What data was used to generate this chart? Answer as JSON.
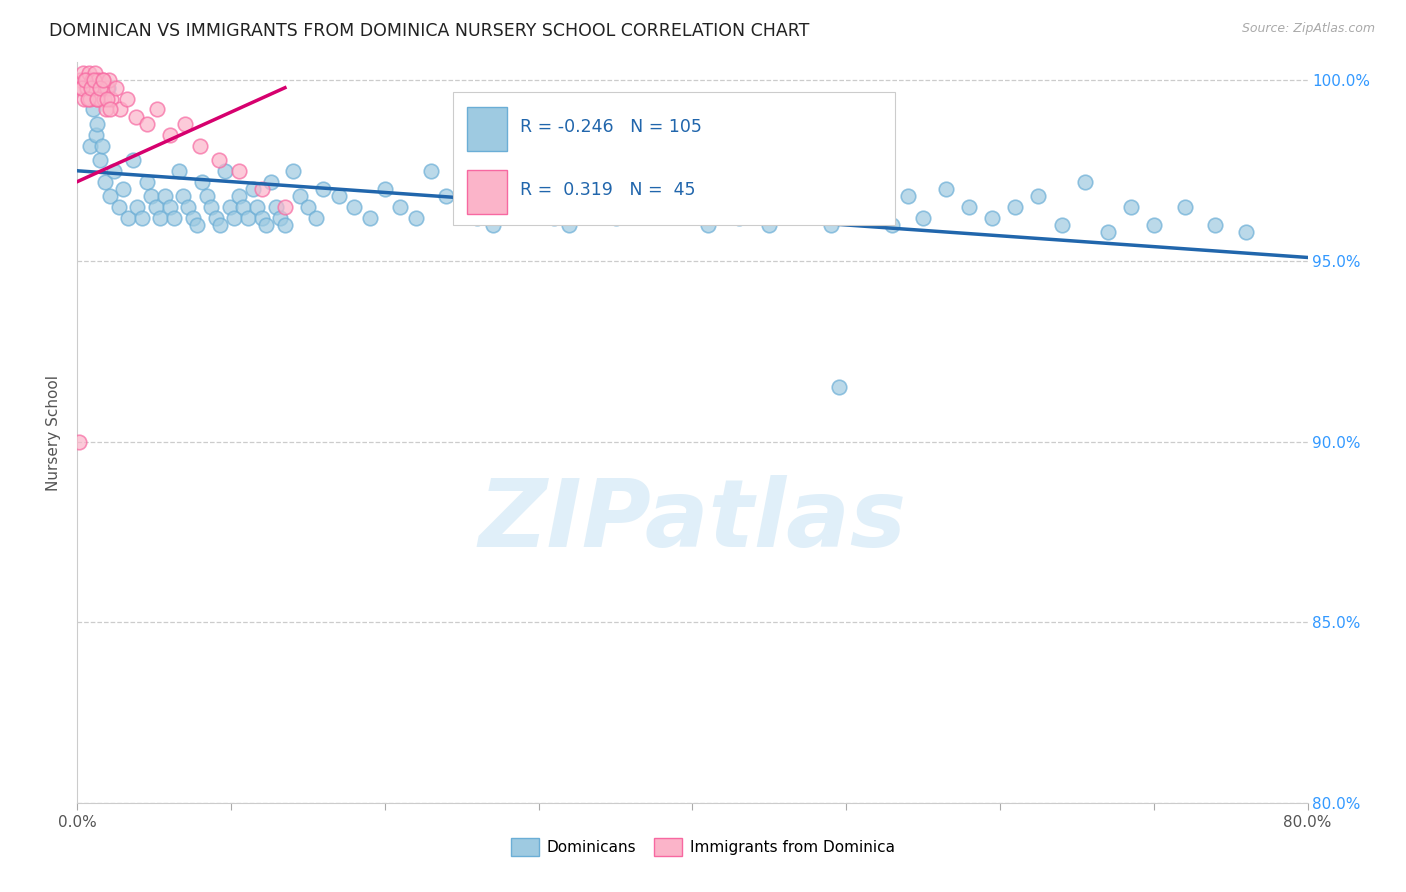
{
  "title": "DOMINICAN VS IMMIGRANTS FROM DOMINICA NURSERY SCHOOL CORRELATION CHART",
  "source": "Source: ZipAtlas.com",
  "ylabel": "Nursery School",
  "xmin": 0.0,
  "xmax": 80.0,
  "ymin": 80.0,
  "ymax": 100.5,
  "yticks": [
    80.0,
    85.0,
    90.0,
    95.0,
    100.0
  ],
  "xtick_left_label": "0.0%",
  "xtick_right_label": "80.0%",
  "blue_color": "#9ecae1",
  "blue_edge_color": "#6baed6",
  "pink_color": "#fbb4c9",
  "pink_edge_color": "#f768a1",
  "blue_line_color": "#2166ac",
  "pink_line_color": "#d6006e",
  "R_blue": -0.246,
  "N_blue": 105,
  "R_pink": 0.319,
  "N_pink": 45,
  "legend_label_blue": "Dominicans",
  "legend_label_pink": "Immigrants from Dominica",
  "watermark": "ZIPatlas",
  "blue_line_x0": 0.0,
  "blue_line_x1": 80.0,
  "blue_line_y0": 97.5,
  "blue_line_y1": 95.1,
  "pink_line_x0": 0.0,
  "pink_line_x1": 13.5,
  "pink_line_y0": 97.2,
  "pink_line_y1": 99.8,
  "blue_points_x": [
    0.8,
    1.2,
    1.5,
    1.8,
    2.1,
    2.4,
    2.7,
    3.0,
    3.3,
    3.6,
    3.9,
    4.2,
    4.5,
    4.8,
    5.1,
    5.4,
    5.7,
    6.0,
    6.3,
    6.6,
    6.9,
    7.2,
    7.5,
    7.8,
    8.1,
    8.4,
    8.7,
    9.0,
    9.3,
    9.6,
    9.9,
    10.2,
    10.5,
    10.8,
    11.1,
    11.4,
    11.7,
    12.0,
    12.3,
    12.6,
    12.9,
    13.2,
    13.5,
    14.0,
    14.5,
    15.0,
    15.5,
    16.0,
    17.0,
    18.0,
    19.0,
    20.0,
    21.0,
    22.0,
    23.0,
    24.0,
    25.0,
    26.0,
    27.0,
    28.0,
    29.0,
    30.0,
    31.0,
    32.0,
    33.0,
    34.0,
    35.0,
    36.0,
    37.0,
    38.0,
    39.0,
    40.0,
    41.0,
    42.0,
    43.0,
    44.0,
    45.0,
    46.0,
    47.0,
    48.0,
    49.0,
    50.0,
    51.0,
    52.0,
    53.0,
    54.0,
    55.0,
    56.5,
    58.0,
    59.5,
    61.0,
    62.5,
    64.0,
    65.5,
    67.0,
    68.5,
    70.0,
    72.0,
    74.0,
    76.0,
    1.0,
    1.3,
    1.6,
    2.0,
    49.5
  ],
  "blue_points_y": [
    98.2,
    98.5,
    97.8,
    97.2,
    96.8,
    97.5,
    96.5,
    97.0,
    96.2,
    97.8,
    96.5,
    96.2,
    97.2,
    96.8,
    96.5,
    96.2,
    96.8,
    96.5,
    96.2,
    97.5,
    96.8,
    96.5,
    96.2,
    96.0,
    97.2,
    96.8,
    96.5,
    96.2,
    96.0,
    97.5,
    96.5,
    96.2,
    96.8,
    96.5,
    96.2,
    97.0,
    96.5,
    96.2,
    96.0,
    97.2,
    96.5,
    96.2,
    96.0,
    97.5,
    96.8,
    96.5,
    96.2,
    97.0,
    96.8,
    96.5,
    96.2,
    97.0,
    96.5,
    96.2,
    97.5,
    96.8,
    96.5,
    96.2,
    96.0,
    97.2,
    96.5,
    96.8,
    96.2,
    96.0,
    97.5,
    96.5,
    96.2,
    97.0,
    96.5,
    97.2,
    96.5,
    96.8,
    96.0,
    97.5,
    96.2,
    96.5,
    96.0,
    97.2,
    96.5,
    96.8,
    96.0,
    97.5,
    96.2,
    96.5,
    96.0,
    96.8,
    96.2,
    97.0,
    96.5,
    96.2,
    96.5,
    96.8,
    96.0,
    97.2,
    95.8,
    96.5,
    96.0,
    96.5,
    96.0,
    95.8,
    99.2,
    98.8,
    98.2,
    99.8,
    91.5
  ],
  "pink_points_x": [
    0.15,
    0.25,
    0.35,
    0.45,
    0.55,
    0.65,
    0.75,
    0.85,
    0.95,
    1.05,
    1.15,
    1.25,
    1.35,
    1.45,
    1.55,
    1.65,
    1.75,
    1.85,
    1.95,
    2.05,
    2.2,
    2.5,
    2.8,
    3.2,
    3.8,
    4.5,
    5.2,
    6.0,
    7.0,
    8.0,
    9.2,
    10.5,
    12.0,
    13.5,
    0.3,
    0.5,
    0.7,
    0.9,
    1.1,
    1.3,
    1.5,
    1.7,
    1.9,
    2.1,
    0.1
  ],
  "pink_points_y": [
    100.0,
    99.8,
    100.2,
    99.5,
    100.0,
    99.8,
    100.2,
    99.5,
    100.0,
    99.8,
    100.2,
    99.5,
    100.0,
    99.5,
    99.8,
    100.0,
    99.5,
    99.2,
    99.8,
    100.0,
    99.5,
    99.8,
    99.2,
    99.5,
    99.0,
    98.8,
    99.2,
    98.5,
    98.8,
    98.2,
    97.8,
    97.5,
    97.0,
    96.5,
    99.8,
    100.0,
    99.5,
    99.8,
    100.0,
    99.5,
    99.8,
    100.0,
    99.5,
    99.2,
    90.0
  ]
}
